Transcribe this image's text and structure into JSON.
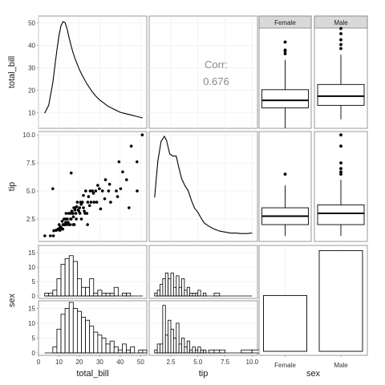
{
  "chart_data": {
    "type": "pairs",
    "variables": [
      "total_bill",
      "tip",
      "sex"
    ],
    "xlabels": [
      "total_bill",
      "tip",
      "sex"
    ],
    "ylabels": [
      "total_bill",
      "tip",
      "sex"
    ],
    "grid": true,
    "strip_labels": [
      "Female",
      "Male"
    ],
    "correlation": {
      "label": "Corr:",
      "value": "0.676"
    },
    "axes": {
      "total_bill": {
        "range": [
          0,
          53
        ],
        "ticks": [
          0,
          10,
          20,
          30,
          40,
          50
        ],
        "ytick_labels": [
          "10",
          "20",
          "30",
          "40",
          "50"
        ],
        "yticks": [
          10,
          20,
          30,
          40,
          50
        ],
        "yrange": [
          3,
          53
        ]
      },
      "tip": {
        "range": [
          0.5,
          10.5
        ],
        "ticks": [
          2.5,
          5.0,
          7.5,
          10.0
        ],
        "tick_labels": [
          "2.5",
          "5.0",
          "7.5",
          "10.0"
        ]
      },
      "sex": {
        "categories": [
          "Female",
          "Male"
        ]
      },
      "count": {
        "range": [
          0,
          17
        ],
        "ticks": [
          0,
          5,
          10,
          15
        ],
        "tick_labels": [
          "0",
          "5",
          "10",
          "15"
        ]
      }
    },
    "density_total_bill": {
      "x": [
        3,
        5,
        7,
        9,
        10,
        11,
        12,
        13,
        14,
        15,
        16,
        17,
        18,
        19,
        20,
        22,
        24,
        26,
        28,
        30,
        32,
        34,
        36,
        38,
        40,
        42,
        44,
        46,
        48,
        50,
        51
      ],
      "y": [
        0.1,
        0.18,
        0.4,
        0.72,
        0.86,
        0.96,
        1.0,
        0.99,
        0.93,
        0.84,
        0.76,
        0.69,
        0.63,
        0.58,
        0.53,
        0.45,
        0.38,
        0.32,
        0.27,
        0.23,
        0.2,
        0.17,
        0.15,
        0.13,
        0.11,
        0.1,
        0.09,
        0.08,
        0.07,
        0.06,
        0.055
      ]
    },
    "density_tip": {
      "x": [
        1.0,
        1.3,
        1.6,
        1.9,
        2.1,
        2.4,
        2.7,
        3.0,
        3.2,
        3.5,
        3.8,
        4.1,
        4.4,
        4.7,
        5.0,
        5.3,
        5.6,
        6.0,
        6.5,
        7.0,
        7.5,
        8.0,
        8.5,
        9.0,
        9.5,
        10.0
      ],
      "y": [
        0.38,
        0.75,
        0.95,
        1.0,
        0.96,
        0.82,
        0.8,
        0.8,
        0.7,
        0.57,
        0.5,
        0.45,
        0.35,
        0.27,
        0.23,
        0.17,
        0.12,
        0.09,
        0.06,
        0.04,
        0.03,
        0.02,
        0.02,
        0.015,
        0.015,
        0.02
      ]
    },
    "boxplots_total_bill": [
      {
        "name": "Female",
        "whisker_low": 3.1,
        "q1": 12.8,
        "median": 16.4,
        "q3": 21.5,
        "whisker_high": 35.8,
        "outliers": [
          38.7,
          40.0,
          40.5,
          44.3
        ]
      },
      {
        "name": "Male",
        "whisker_low": 7.3,
        "q1": 14.0,
        "median": 18.4,
        "q3": 24.0,
        "whisker_high": 38.3,
        "outliers": [
          41.2,
          43.1,
          45.4,
          48.3,
          50.8
        ]
      }
    ],
    "boxplots_tip": [
      {
        "name": "Female",
        "whisker_low": 1.0,
        "q1": 2.0,
        "median": 2.75,
        "q3": 3.5,
        "whisker_high": 5.5,
        "outliers": [
          6.5
        ]
      },
      {
        "name": "Male",
        "whisker_low": 1.0,
        "q1": 2.0,
        "median": 3.0,
        "q3": 3.76,
        "whisker_high": 6.0,
        "outliers": [
          6.5,
          6.7,
          7.0,
          7.5,
          9.0,
          10.0
        ]
      }
    ],
    "scatter": {
      "total_bill": [
        3.1,
        5.8,
        7.3,
        7.5,
        8.5,
        8.8,
        9.6,
        10.1,
        10.3,
        10.3,
        10.6,
        10.8,
        11.2,
        11.6,
        11.9,
        12.0,
        12.3,
        12.5,
        12.7,
        12.9,
        13.0,
        13.3,
        13.4,
        13.8,
        14.1,
        14.5,
        14.8,
        15.0,
        15.4,
        15.5,
        15.7,
        16.0,
        16.3,
        16.5,
        16.9,
        17.1,
        17.3,
        17.5,
        17.8,
        18.0,
        18.3,
        18.5,
        18.7,
        19.0,
        19.4,
        19.8,
        20.1,
        20.3,
        20.6,
        20.9,
        21.0,
        21.5,
        22.0,
        22.4,
        22.8,
        23.1,
        23.7,
        24.1,
        24.5,
        25.0,
        25.3,
        25.7,
        26.4,
        26.9,
        27.2,
        28.0,
        28.5,
        29.0,
        29.8,
        30.4,
        31.3,
        32.4,
        32.8,
        34.3,
        34.8,
        35.3,
        38.1,
        38.7,
        39.4,
        40.2,
        41.2,
        43.1,
        44.3,
        45.4,
        48.2,
        48.3,
        50.8,
        7.0,
        13.5,
        16.0,
        22.0,
        17.0,
        24.0
      ],
      "tip": [
        1.0,
        1.0,
        1.0,
        1.45,
        1.5,
        1.5,
        1.6,
        2.0,
        1.5,
        1.7,
        1.5,
        1.8,
        1.7,
        2.3,
        1.6,
        2.0,
        2.0,
        2.5,
        2.0,
        2.0,
        2.0,
        2.2,
        2.5,
        2.0,
        2.5,
        2.2,
        3.0,
        2.0,
        3.0,
        2.0,
        2.5,
        2.5,
        3.2,
        3.0,
        3.0,
        2.7,
        3.5,
        2.0,
        3.3,
        3.5,
        3.0,
        2.5,
        3.6,
        4.0,
        3.3,
        3.2,
        3.5,
        3.0,
        4.0,
        3.8,
        2.5,
        4.0,
        3.5,
        3.2,
        3.0,
        5.0,
        3.0,
        4.0,
        4.5,
        3.7,
        5.0,
        4.0,
        5.0,
        4.8,
        4.0,
        5.0,
        4.0,
        5.5,
        5.2,
        3.4,
        5.0,
        4.3,
        6.0,
        5.0,
        5.6,
        4.0,
        5.0,
        4.5,
        7.6,
        5.2,
        6.7,
        6.0,
        3.5,
        9.0,
        7.6,
        5.0,
        10.0,
        5.2,
        3.0,
        6.6,
        4.6,
        2.0,
        2.0
      ],
      "marker": "dot"
    },
    "hist_total_bill": {
      "bins": [
        3,
        5,
        7,
        9,
        11,
        13,
        15,
        17,
        19,
        21,
        23,
        25,
        27,
        29,
        31,
        33,
        35,
        37,
        39,
        41,
        43,
        45,
        47,
        49,
        51
      ],
      "female_counts": [
        1,
        1,
        2,
        6,
        11,
        13,
        14,
        12,
        6,
        3,
        3,
        6,
        1,
        2,
        1,
        1,
        1,
        3,
        0,
        1,
        1,
        0,
        0,
        0,
        0
      ],
      "male_counts": [
        0,
        0,
        2,
        8,
        13,
        15,
        17,
        15,
        14,
        12,
        11,
        9,
        7,
        6,
        5,
        3,
        4,
        2,
        1,
        3,
        1,
        2,
        0,
        1,
        1
      ]
    },
    "hist_tip": {
      "bins": [
        1.0,
        1.25,
        1.5,
        1.75,
        2.0,
        2.25,
        2.5,
        2.75,
        3.0,
        3.25,
        3.5,
        3.75,
        4.0,
        4.25,
        4.5,
        4.75,
        5.0,
        5.25,
        5.5,
        5.75,
        6.0,
        6.5,
        7.0,
        7.5,
        8.0,
        9.0,
        10.0
      ],
      "female_counts": [
        1,
        2,
        4,
        6,
        8,
        6,
        8,
        3,
        7,
        3,
        6,
        2,
        3,
        1,
        1,
        1,
        2,
        0,
        1,
        0,
        0,
        1,
        0,
        0,
        0,
        0,
        0
      ],
      "male_counts": [
        1,
        3,
        3,
        16,
        6,
        11,
        8,
        5,
        10,
        3,
        5,
        2,
        4,
        1,
        2,
        1,
        2,
        1,
        1,
        0,
        1,
        1,
        1,
        0,
        0,
        1,
        1
      ]
    },
    "bar_sex": {
      "categories": [
        "Female",
        "Male"
      ],
      "values": [
        87,
        157
      ],
      "ylim": [
        0,
        165
      ]
    }
  }
}
